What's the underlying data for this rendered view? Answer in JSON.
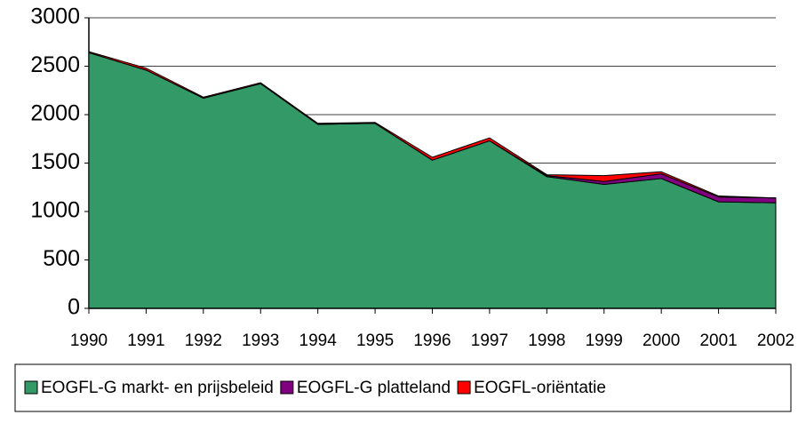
{
  "chart_data": {
    "type": "stacked-area",
    "categories": [
      "1990",
      "1991",
      "1992",
      "1993",
      "1994",
      "1995",
      "1996",
      "1997",
      "1998",
      "1999",
      "2000",
      "2001",
      "2002"
    ],
    "series": [
      {
        "name": "EOGFL-G markt- en prijsbeleid",
        "color": "#339966",
        "values": [
          2640,
          2460,
          2170,
          2320,
          1900,
          1910,
          1530,
          1730,
          1360,
          1280,
          1340,
          1100,
          1090
        ]
      },
      {
        "name": "EOGFL-G platteland",
        "color": "#800080",
        "values": [
          0,
          0,
          0,
          0,
          0,
          0,
          0,
          0,
          10,
          30,
          50,
          50,
          50
        ]
      },
      {
        "name": "EOGFL-oriëntatie",
        "color": "#ff0000",
        "values": [
          10,
          20,
          10,
          10,
          10,
          10,
          30,
          30,
          10,
          60,
          20,
          10,
          0
        ]
      }
    ],
    "ylim": [
      0,
      3000
    ],
    "yticks": [
      0,
      500,
      1000,
      1500,
      2000,
      2500,
      3000
    ],
    "grid": true,
    "legend": "bottom"
  }
}
